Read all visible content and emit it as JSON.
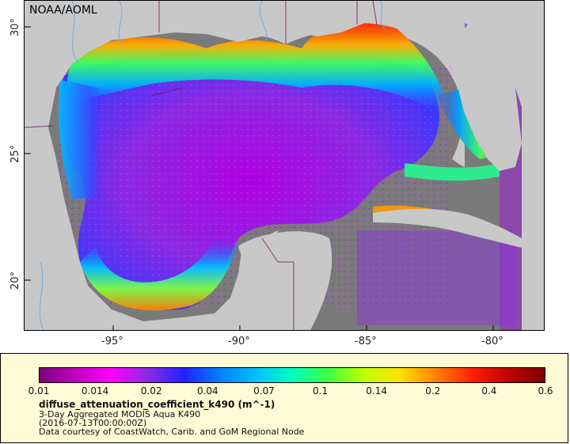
{
  "map": {
    "provider": "NOAA/AOML",
    "lat_labels": [
      "30°",
      "25°",
      "20°"
    ],
    "lon_labels": [
      "-95°",
      "-90°",
      "-85°",
      "-80°"
    ],
    "colors": {
      "land": "#c8c8c8",
      "no_data": "#7a7a7a",
      "border": "#6b1a5a",
      "river": "#6fa8dc"
    }
  },
  "legend": {
    "ticks": [
      "0.01",
      "0.014",
      "0.02",
      "0.04",
      "0.07",
      "0.1",
      "0.14",
      "0.2",
      "0.4",
      "0.6"
    ],
    "variable": "diffuse_attenuation_coefficient_k490 (m^-1)",
    "product": "3-Day Aggregated MODIS Aqua K490",
    "date": "(2016-07-13T00:00:00Z)",
    "credit": "Data courtesy of CoastWatch, Carib. and GoM Regional Node",
    "colorscale": [
      "#7a0079",
      "#c000c0",
      "#ff00ff",
      "#8a2be2",
      "#2222ff",
      "#0080ff",
      "#00c0ff",
      "#00ffc0",
      "#40ff40",
      "#c0ff00",
      "#ffe000",
      "#ff8000",
      "#ff2000",
      "#c00000",
      "#7a0000"
    ],
    "colors": {
      "panel": "#fffbd6"
    }
  }
}
